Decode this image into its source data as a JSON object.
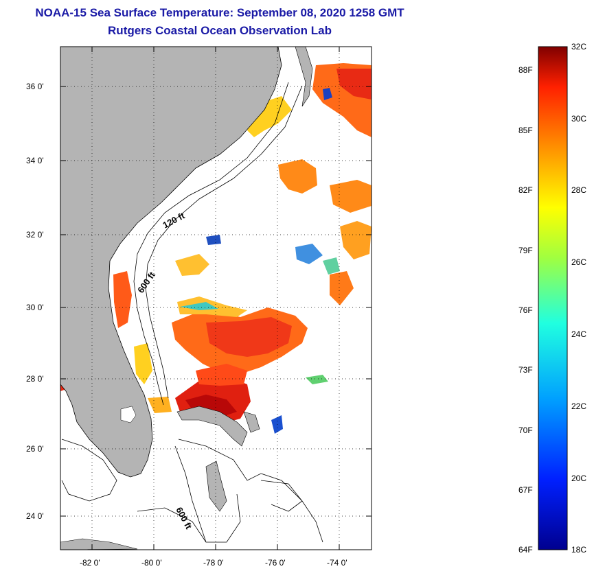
{
  "title": {
    "line1": "NOAA-15 Sea Surface Temperature:  September 08, 2020 1258 GMT",
    "line2": "Rutgers Coastal Ocean Observation Lab"
  },
  "map": {
    "lat_ticks": [
      "36 0'",
      "34 0'",
      "32 0'",
      "30 0'",
      "28 0'",
      "26 0'",
      "24 0'"
    ],
    "lon_ticks": [
      "-82 0'",
      "-80 0'",
      "-78 0'",
      "-76 0'",
      "-74 0'"
    ],
    "contour_labels": {
      "shelf_120": "120 ft",
      "shelf_600_north": "600 ft",
      "shelf_600_south": "600 ft"
    },
    "colors": {
      "land": "#b4b4b4",
      "ocean_nodata": "#ffffff",
      "hot": "#e02010",
      "warm": "#ff7a10",
      "mild": "#ffd020",
      "cool": "#40d0a0",
      "cold": "#1040c0"
    }
  },
  "colorbar": {
    "min_c": 18,
    "max_c": 32,
    "celsius_labels": [
      "32C",
      "30C",
      "28C",
      "26C",
      "24C",
      "22C",
      "20C",
      "18C"
    ],
    "fahrenheit_labels": [
      "88F",
      "85F",
      "82F",
      "79F",
      "76F",
      "73F",
      "70F",
      "67F",
      "64F"
    ]
  }
}
